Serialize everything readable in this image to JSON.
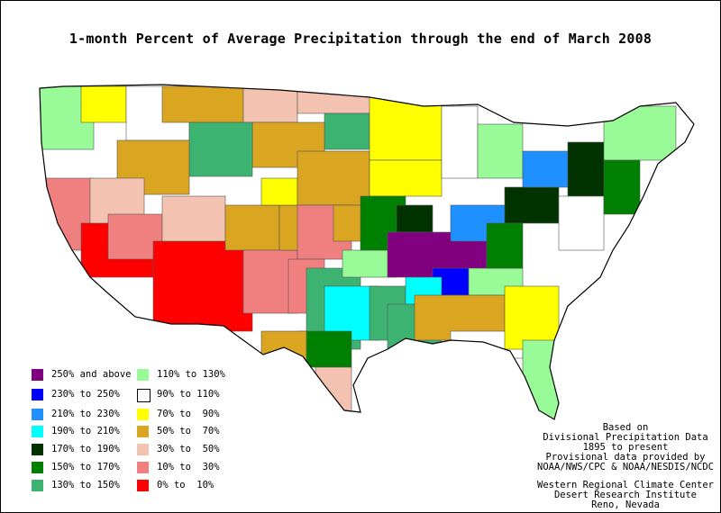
{
  "title": "1-month Percent of Average Precipitation through the end of March 2008",
  "legend": [
    {
      "label": "250% and above",
      "color": "#800080"
    },
    {
      "label": "230% to 250%",
      "color": "#0000ff"
    },
    {
      "label": "210% to 230%",
      "color": "#1e90ff"
    },
    {
      "label": "190% to 210%",
      "color": "#00ffff"
    },
    {
      "label": "170% to 190%",
      "color": "#003300"
    },
    {
      "label": "150% to 170%",
      "color": "#008000"
    },
    {
      "label": "130% to 150%",
      "color": "#3cb371"
    },
    {
      "label": "110% to 130%",
      "color": "#98fb98"
    },
    {
      "label": "90% to 110%",
      "color": "#ffffff"
    },
    {
      "label": "70% to  90%",
      "color": "#ffff00"
    },
    {
      "label": "50% to  70%",
      "color": "#daa520"
    },
    {
      "label": "30% to  50%",
      "color": "#f4c2b0"
    },
    {
      "label": "10% to  30%",
      "color": "#f08080"
    },
    {
      "label": "0% to  10%",
      "color": "#ff0000"
    }
  ],
  "credits": {
    "based_on": "Based on",
    "dataset": "Divisional Precipitation Data",
    "period": "1895 to present",
    "provisional": "Provisional data provided by",
    "providers": "NOAA/NWS/CPC & NOAA/NESDIS/NCDC",
    "org1": "Western Regional Climate Center",
    "org2": "Desert Research Institute",
    "location": "Reno, Nevada"
  }
}
